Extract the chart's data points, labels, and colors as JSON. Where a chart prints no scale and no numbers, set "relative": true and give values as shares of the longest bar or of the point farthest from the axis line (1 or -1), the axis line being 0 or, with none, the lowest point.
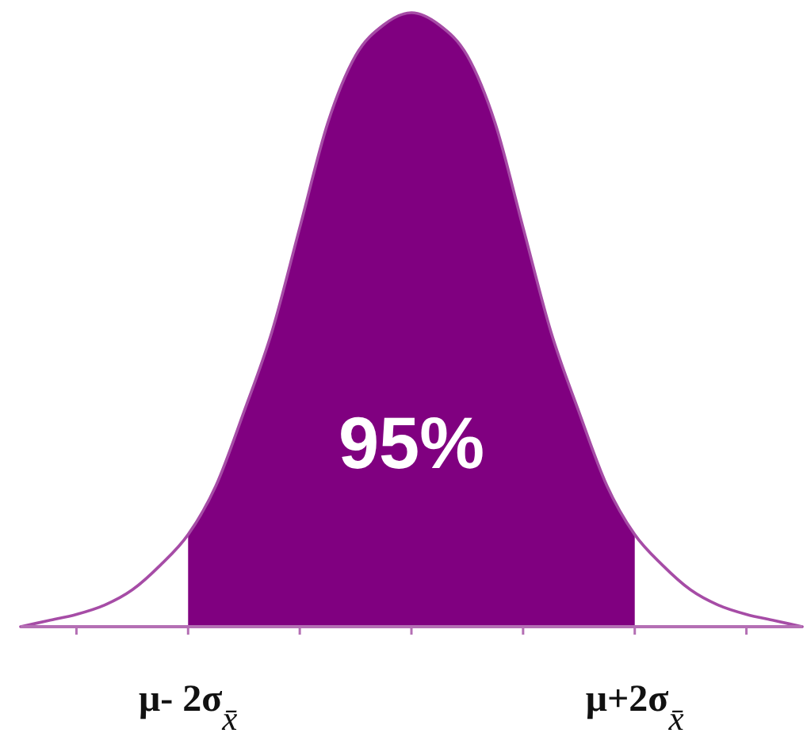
{
  "chart_data": {
    "type": "area",
    "relative": true,
    "categories": [
      null,
      null,
      null,
      null,
      null,
      null,
      "μ- 2σ$_{x̄}$",
      null,
      null,
      null,
      null,
      null,
      null,
      null,
      null,
      null,
      null,
      null,
      null,
      null,
      null,
      null,
      "μ+2σ$_{x̄}$",
      null,
      null,
      null,
      null,
      null,
      null
    ],
    "series": [
      {
        "color": "#800080",
        "values": [
          null,
          null,
          null,
          null,
          null,
          null,
          0.15,
          0.23,
          0.35,
          0.48,
          0.65,
          0.82,
          0.93,
          0.98,
          1,
          0.98,
          0.93,
          0.82,
          0.65,
          0.48,
          0.35,
          0.23,
          0.15,
          null,
          null,
          null,
          null,
          null,
          null
        ]
      },
      {
        "type": "line",
        "color": "#a64ca6",
        "values": [
          0,
          0.01,
          0.02,
          0.035,
          0.06,
          0.1,
          0.15,
          0.23,
          0.35,
          0.48,
          0.65,
          0.82,
          0.93,
          0.98,
          1,
          0.98,
          0.93,
          0.82,
          0.65,
          0.48,
          0.35,
          0.23,
          0.15,
          0.1,
          0.06,
          0.035,
          0.02,
          0.01,
          0
        ]
      }
    ],
    "annotations": [
      "95%"
    ]
  }
}
